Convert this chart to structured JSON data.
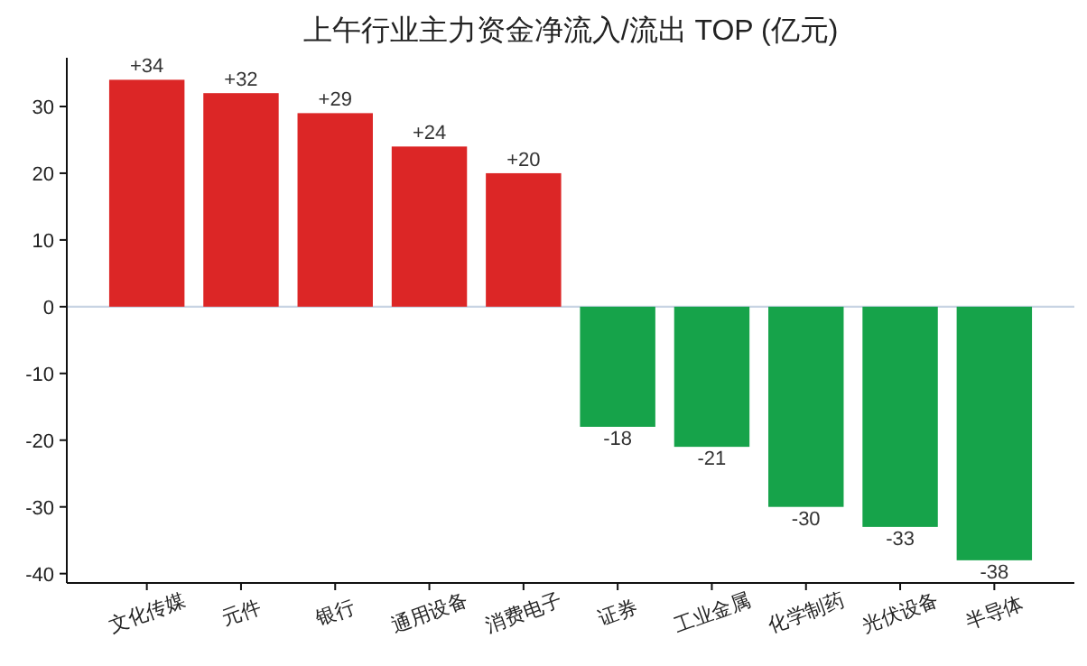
{
  "chart_data": {
    "type": "bar",
    "title": "上午行业主力资金净流入/流出 TOP (亿元)",
    "categories": [
      "文化传媒",
      "元件",
      "银行",
      "通用设备",
      "消费电子",
      "证券",
      "工业金属",
      "化学制药",
      "光伏设备",
      "半导体"
    ],
    "values": [
      34,
      32,
      29,
      24,
      20,
      -18,
      -21,
      -30,
      -33,
      -38
    ],
    "colors": [
      "#dc2626",
      "#dc2626",
      "#dc2626",
      "#dc2626",
      "#dc2626",
      "#16a34a",
      "#16a34a",
      "#16a34a",
      "#16a34a",
      "#16a34a"
    ],
    "value_labels": [
      "+34",
      "+32",
      "+29",
      "+24",
      "+20",
      "-18",
      "-21",
      "-30",
      "-33",
      "-38"
    ],
    "ylim": [
      -41.4,
      37.3
    ],
    "yticks": [
      -40,
      -30,
      -20,
      -10,
      0,
      10,
      20,
      30
    ],
    "ref_lines": [
      {
        "axis": "y",
        "value": 0,
        "color": "#c8d4e3"
      }
    ],
    "grid": false
  }
}
